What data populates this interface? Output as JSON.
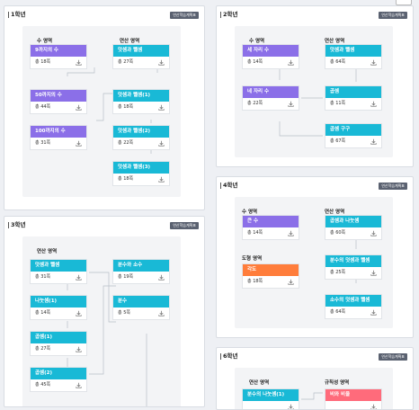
{
  "common": {
    "guide_label": "연산학습계획표",
    "download_icon": "download-icon"
  },
  "grade1": {
    "title": "1학년",
    "col_a": "수 영역",
    "col_b": "연산 영역",
    "cards": [
      {
        "label": "9까지의 수",
        "count": "총 18쪽",
        "color": "purple"
      },
      {
        "label": "50까지의 수",
        "count": "총 44쪽",
        "color": "purple"
      },
      {
        "label": "100까지의 수",
        "count": "총 31쪽",
        "color": "purple"
      },
      {
        "label": "덧셈과 뺄셈",
        "count": "총 27쪽",
        "color": "cyan"
      },
      {
        "label": "덧셈과 뺄셈(1)",
        "count": "총 18쪽",
        "color": "cyan"
      },
      {
        "label": "덧셈과 뺄셈(2)",
        "count": "총 22쪽",
        "color": "cyan"
      },
      {
        "label": "덧셈과 뺄셈(3)",
        "count": "총 18쪽",
        "color": "cyan"
      }
    ]
  },
  "grade2": {
    "title": "2학년",
    "col_a": "수 영역",
    "col_b": "연산 영역",
    "cards": [
      {
        "label": "세 자리 수",
        "count": "총 14쪽",
        "color": "purple"
      },
      {
        "label": "네 자리 수",
        "count": "총 22쪽",
        "color": "purple"
      },
      {
        "label": "덧셈과 뺄셈",
        "count": "총 64쪽",
        "color": "cyan"
      },
      {
        "label": "곱셈",
        "count": "총 11쪽",
        "color": "cyan"
      },
      {
        "label": "곱셈 구구",
        "count": "총 67쪽",
        "color": "cyan"
      }
    ]
  },
  "grade3": {
    "title": "3학년",
    "col_a": "연산 영역",
    "cards": [
      {
        "label": "덧셈과 뺄셈",
        "count": "총 31쪽",
        "color": "cyan"
      },
      {
        "label": "나눗셈(1)",
        "count": "총 14쪽",
        "color": "cyan"
      },
      {
        "label": "곱셈(1)",
        "count": "총 27쪽",
        "color": "cyan"
      },
      {
        "label": "곱셈(2)",
        "count": "총 45쪽",
        "color": "cyan"
      },
      {
        "label": "분수와 소수",
        "count": "총 19쪽",
        "color": "cyan"
      },
      {
        "label": "분수",
        "count": "총 5쪽",
        "color": "cyan"
      }
    ]
  },
  "grade4": {
    "title": "4학년",
    "col_a": "수 영역",
    "col_b": "연산 영역",
    "col_c": "도형 영역",
    "cards": [
      {
        "label": "큰 수",
        "count": "총 14쪽",
        "color": "purple"
      },
      {
        "label": "각도",
        "count": "총 18쪽",
        "color": "orange"
      },
      {
        "label": "곱셈과 나눗셈",
        "count": "총 60쪽",
        "color": "cyan"
      },
      {
        "label": "분수의 덧셈과 뺄셈",
        "count": "총 25쪽",
        "color": "cyan"
      },
      {
        "label": "소수의 덧셈과 뺄셈",
        "count": "총 64쪽",
        "color": "cyan"
      }
    ]
  },
  "grade6": {
    "title": "6학년",
    "col_a": "연산 영역",
    "col_b": "규칙성 영역",
    "cards": [
      {
        "label": "분수의 나눗셈(1)",
        "count": "",
        "color": "cyan"
      },
      {
        "label": "비와 비율",
        "count": "",
        "color": "pink"
      }
    ]
  }
}
